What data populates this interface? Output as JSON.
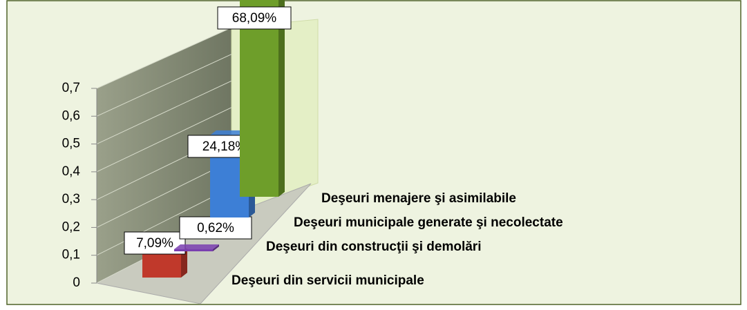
{
  "chart_data": {
    "type": "bar3d",
    "categories": [
      "Deşeuri din servicii municipale",
      "Deşeuri din construcţii şi demolări",
      "Deşeuri municipale generate şi necolectate",
      "Deşeuri menajere şi asimilabile"
    ],
    "values": [
      0.0709,
      0.0062,
      0.2418,
      0.6809
    ],
    "value_labels": [
      "7,09%",
      "0,62%",
      "24,18%",
      "68,09%"
    ],
    "colors": [
      "#c0392b",
      "#7a3fb0",
      "#3d7fd6",
      "#6e9e2a"
    ],
    "ylim": [
      0,
      0.7
    ],
    "yticks": [
      0,
      {
        "value": 0.1,
        "label": "0,1"
      },
      {
        "value": 0.2,
        "label": "0,2"
      },
      {
        "value": 0.3,
        "label": "0,3"
      },
      {
        "value": 0.4,
        "label": "0,4"
      },
      {
        "value": 0.5,
        "label": "0,5"
      },
      {
        "value": 0.6,
        "label": "0,6"
      },
      {
        "value": 0.7,
        "label": "0,7"
      }
    ],
    "grid": true
  }
}
